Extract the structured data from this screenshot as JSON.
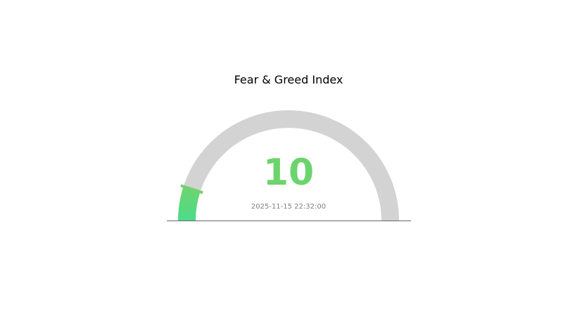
{
  "chart_data": {
    "type": "gauge",
    "title": "Fear & Greed Index",
    "value": 10,
    "range": [
      0,
      100
    ],
    "value_label": "10",
    "timestamp": "2025-11-15 22:32:00",
    "colors": {
      "track": "#d3d3d3",
      "fill_start": "#4cdc8a",
      "fill_end": "#6fd36f",
      "value_text": "#6cd46c",
      "timestamp_text": "#808080",
      "baseline": "#666666"
    }
  }
}
